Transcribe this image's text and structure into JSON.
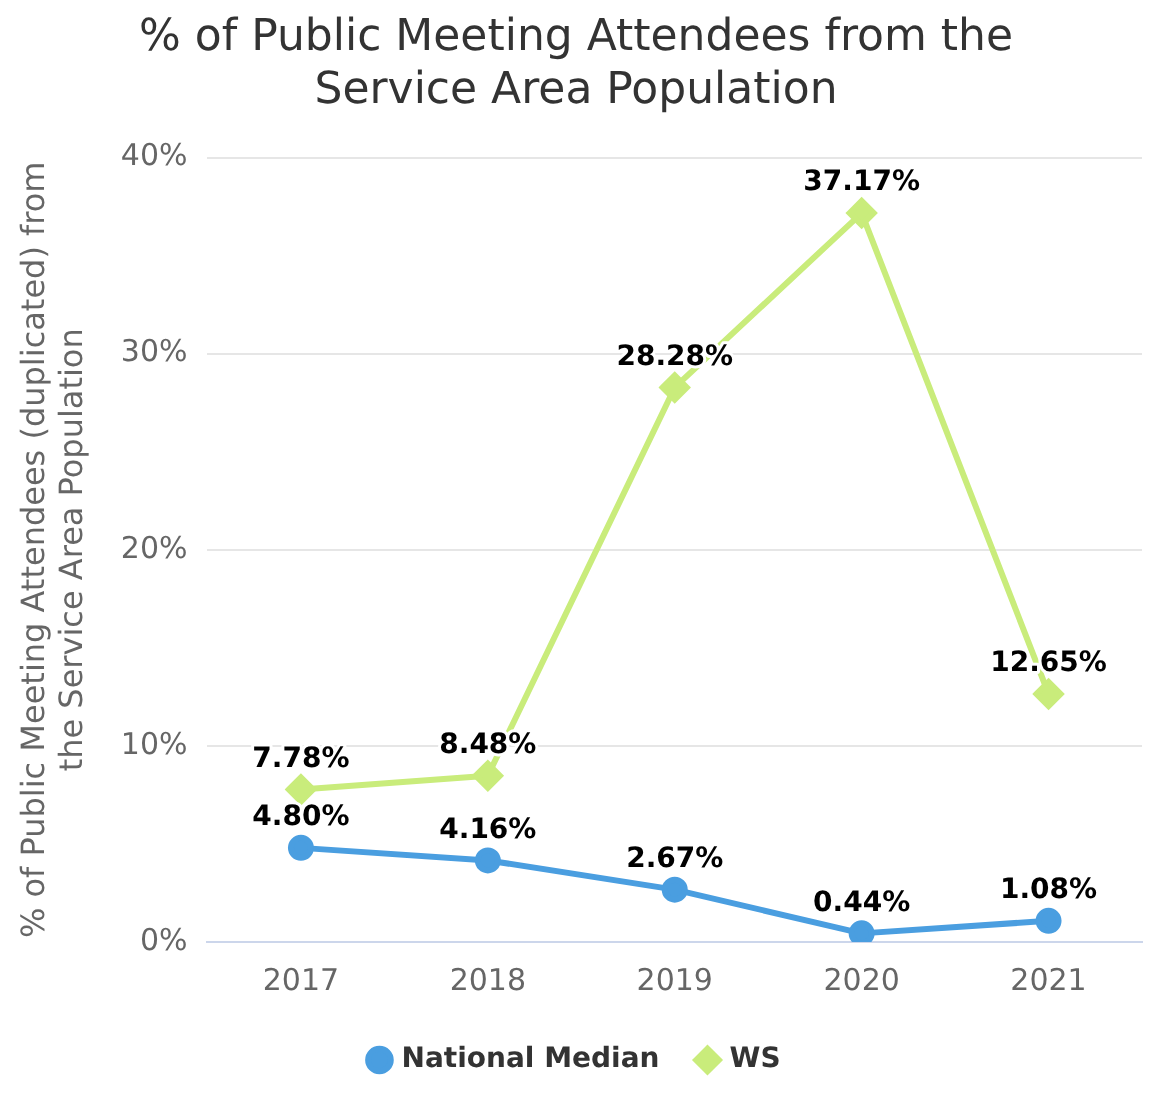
{
  "chart_data": {
    "type": "line",
    "title": "% of Public Meeting Attendees from the Service Area Population",
    "ylabel": "% of Public Meeting Attendees (duplicated) from the Service Area Population",
    "categories": [
      "2017",
      "2018",
      "2019",
      "2020",
      "2021"
    ],
    "series": [
      {
        "name": "National Median",
        "color": "#4a9ee0",
        "marker": "circle",
        "values": [
          4.8,
          4.16,
          2.67,
          0.44,
          1.08
        ],
        "value_labels": [
          "4.80%",
          "4.16%",
          "2.67%",
          "0.44%",
          "1.08%"
        ]
      },
      {
        "name": "WS",
        "color": "#c9ec7b",
        "marker": "diamond",
        "values": [
          7.78,
          8.48,
          28.28,
          37.17,
          12.65
        ],
        "value_labels": [
          "7.78%",
          "8.48%",
          "28.28%",
          "37.17%",
          "12.65%"
        ]
      }
    ],
    "ylim": [
      0,
      40
    ],
    "yticks": [
      {
        "value": 0,
        "label": "0%"
      },
      {
        "value": 10,
        "label": "10%"
      },
      {
        "value": 20,
        "label": "20%"
      },
      {
        "value": 30,
        "label": "30%"
      },
      {
        "value": 40,
        "label": "40%"
      }
    ],
    "grid": "y",
    "legend": "bottom",
    "line_style": "solid"
  }
}
